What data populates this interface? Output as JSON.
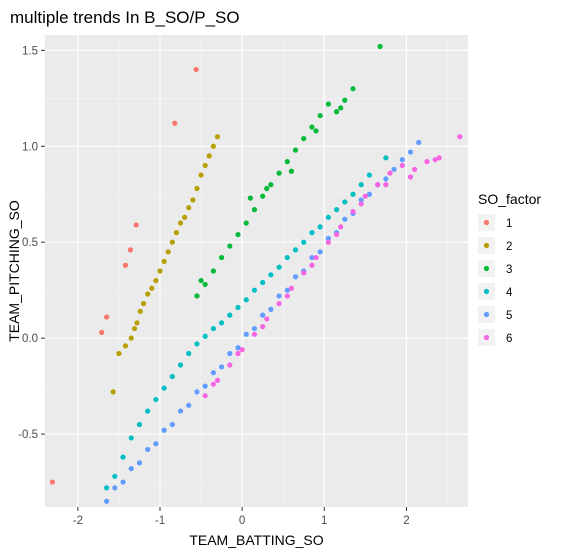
{
  "chart_data": {
    "type": "scatter",
    "title": "multiple trends In B_SO/P_SO",
    "xlabel": "TEAM_BATTING_SO",
    "ylabel": "TEAM_PITCHING_SO",
    "xlim": [
      -2.4,
      2.75
    ],
    "ylim": [
      -0.88,
      1.58
    ],
    "x_ticks": [
      -2,
      -1,
      0,
      1,
      2
    ],
    "x_tick_labels": [
      "-2",
      "-1",
      "0",
      "1",
      "2"
    ],
    "y_ticks": [
      -0.5,
      0.0,
      0.5,
      1.0,
      1.5
    ],
    "y_tick_labels": [
      "-0.5",
      "0.0",
      "0.5",
      "1.0",
      "1.5"
    ],
    "grid": true,
    "legend": {
      "title": "SO_factor",
      "position": "right"
    },
    "series": [
      {
        "name": "1",
        "color": "#F8766D",
        "x": [
          -2.31,
          -1.71,
          -1.65,
          -1.42,
          -1.36,
          -1.29,
          -0.82,
          -0.56
        ],
        "y": [
          -0.75,
          0.03,
          0.11,
          0.38,
          0.46,
          0.59,
          1.12,
          1.4
        ]
      },
      {
        "name": "2",
        "color": "#B79F00",
        "x": [
          -1.57,
          -1.5,
          -1.42,
          -1.35,
          -1.31,
          -1.28,
          -1.24,
          -1.2,
          -1.15,
          -1.1,
          -1.05,
          -1.0,
          -0.95,
          -0.9,
          -0.85,
          -0.8,
          -0.75,
          -0.7,
          -0.65,
          -0.6,
          -0.55,
          -0.5,
          -0.45,
          -0.4,
          -0.35,
          -0.3
        ],
        "y": [
          -0.28,
          -0.08,
          -0.04,
          0.0,
          0.05,
          0.08,
          0.14,
          0.18,
          0.23,
          0.26,
          0.3,
          0.35,
          0.4,
          0.45,
          0.5,
          0.55,
          0.6,
          0.63,
          0.68,
          0.72,
          0.78,
          0.85,
          0.9,
          0.95,
          1.0,
          1.05
        ]
      },
      {
        "name": "3",
        "color": "#00BA38",
        "x": [
          -0.55,
          -0.45,
          -0.35,
          -0.25,
          -0.15,
          -0.05,
          0.05,
          0.15,
          0.25,
          0.35,
          0.45,
          0.55,
          0.65,
          0.75,
          0.85,
          0.95,
          1.05,
          1.15,
          1.25,
          1.35,
          1.68,
          -0.5,
          0.1,
          0.3,
          0.6,
          0.9,
          1.2
        ],
        "y": [
          0.22,
          0.28,
          0.35,
          0.42,
          0.48,
          0.54,
          0.6,
          0.67,
          0.74,
          0.8,
          0.86,
          0.92,
          0.98,
          1.04,
          1.1,
          1.16,
          1.22,
          1.18,
          1.24,
          1.3,
          1.52,
          0.3,
          0.73,
          0.78,
          0.87,
          1.08,
          1.2
        ]
      },
      {
        "name": "4",
        "color": "#00BFC4",
        "x": [
          -1.65,
          -1.55,
          -1.45,
          -1.35,
          -1.25,
          -1.15,
          -1.05,
          -0.95,
          -0.85,
          -0.75,
          -0.65,
          -0.55,
          -0.45,
          -0.35,
          -0.25,
          -0.15,
          -0.05,
          0.05,
          0.15,
          0.25,
          0.35,
          0.45,
          0.55,
          0.65,
          0.75,
          0.85,
          0.95,
          1.05,
          1.15,
          1.25,
          1.35,
          1.45,
          1.55,
          1.75
        ],
        "y": [
          -0.78,
          -0.72,
          -0.62,
          -0.52,
          -0.45,
          -0.38,
          -0.32,
          -0.26,
          -0.2,
          -0.14,
          -0.08,
          -0.03,
          0.01,
          0.05,
          0.08,
          0.12,
          0.16,
          0.2,
          0.25,
          0.29,
          0.33,
          0.37,
          0.42,
          0.46,
          0.5,
          0.55,
          0.58,
          0.63,
          0.67,
          0.71,
          0.75,
          0.8,
          0.85,
          0.94
        ]
      },
      {
        "name": "5",
        "color": "#619CFF",
        "x": [
          -1.65,
          -1.45,
          -1.25,
          -1.05,
          -0.85,
          -0.65,
          -0.45,
          -0.25,
          -0.05,
          0.15,
          0.35,
          0.55,
          0.75,
          0.95,
          1.15,
          1.35,
          1.55,
          1.75,
          1.95,
          2.15,
          -1.55,
          -1.35,
          -1.15,
          -0.95,
          -0.75,
          -0.55,
          -0.35,
          -0.15,
          0.05,
          0.25,
          0.45,
          0.65,
          0.85,
          1.05,
          1.25,
          1.45,
          1.65,
          1.85,
          2.05
        ],
        "y": [
          -0.85,
          -0.75,
          -0.65,
          -0.55,
          -0.45,
          -0.35,
          -0.25,
          -0.15,
          -0.05,
          0.05,
          0.15,
          0.25,
          0.35,
          0.45,
          0.55,
          0.65,
          0.75,
          0.83,
          0.93,
          1.02,
          -0.78,
          -0.68,
          -0.58,
          -0.48,
          -0.38,
          -0.28,
          -0.18,
          -0.08,
          0.02,
          0.12,
          0.22,
          0.32,
          0.42,
          0.52,
          0.62,
          0.72,
          0.8,
          0.88,
          0.97
        ]
      },
      {
        "name": "6",
        "color": "#F564E3",
        "x": [
          -0.45,
          -0.3,
          -0.15,
          0.0,
          0.15,
          0.3,
          0.45,
          0.6,
          0.75,
          0.9,
          1.05,
          1.2,
          1.35,
          1.5,
          1.65,
          1.8,
          1.95,
          2.1,
          2.25,
          2.4,
          2.65,
          -0.35,
          -0.05,
          0.25,
          0.55,
          0.85,
          1.15,
          1.45,
          1.75,
          2.05,
          2.35
        ],
        "y": [
          -0.3,
          -0.22,
          -0.14,
          -0.06,
          0.02,
          0.1,
          0.18,
          0.26,
          0.34,
          0.42,
          0.5,
          0.58,
          0.66,
          0.74,
          0.8,
          0.86,
          0.9,
          0.88,
          0.92,
          0.94,
          1.05,
          -0.24,
          -0.08,
          0.06,
          0.22,
          0.38,
          0.54,
          0.7,
          0.8,
          0.84,
          0.93
        ]
      }
    ]
  }
}
